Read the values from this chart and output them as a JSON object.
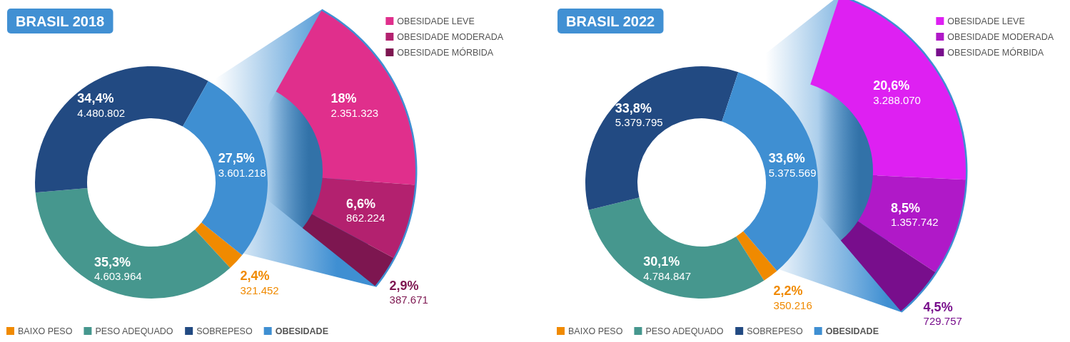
{
  "chart_data": [
    {
      "type": "donut",
      "title": "BRASIL 2018",
      "categories": [
        "BAIXO PESO",
        "PESO ADEQUADO",
        "SOBREPESO",
        "OBESIDADE"
      ],
      "values": [
        2.4,
        35.3,
        34.4,
        27.5
      ],
      "colors": [
        "#f08a00",
        "#46978e",
        "#224a82",
        "#3f8fd2"
      ],
      "value_labels": [
        "2,4%\n321.452",
        "35,3%\n4.603.964",
        "34,4%\n4.480.802",
        "27,5%\n3.601.218"
      ],
      "legend": "bottom"
    },
    {
      "type": "donut",
      "categories": [
        "OBESIDADE LEVE",
        "OBESIDADE MODERADA",
        "OBESIDADE MÓRBIDA"
      ],
      "values": [
        18,
        6.6,
        2.9
      ],
      "colors": [
        "#e02f8c",
        "#b3216f",
        "#7d1650"
      ],
      "value_labels": [
        "18%\n2.351.323",
        "6,6%\n862.224",
        "2,9%\n387.671"
      ],
      "legend": "top right"
    },
    {
      "type": "donut",
      "title": "BRASIL 2022",
      "categories": [
        "BAIXO PESO",
        "PESO ADEQUADO",
        "SOBREPESO",
        "OBESIDADE"
      ],
      "values": [
        2.2,
        30.1,
        33.8,
        33.6
      ],
      "colors": [
        "#f08a00",
        "#46978e",
        "#224a82",
        "#3f8fd2"
      ],
      "value_labels": [
        "2,2%\n350.216",
        "30,1%\n4.784.847",
        "33,8%\n5.379.795",
        "33,6%\n5.375.569"
      ],
      "legend": "bottom"
    },
    {
      "type": "donut",
      "categories": [
        "OBESIDADE LEVE",
        "OBESIDADE MODERADA",
        "OBESIDADE MÓRBIDA"
      ],
      "values": [
        20.6,
        8.5,
        4.5
      ],
      "colors": [
        "#de20f2",
        "#b019c8",
        "#780e8c"
      ],
      "value_labels": [
        "20,6%\n3.288.070",
        "8,5%\n1.357.742",
        "4,5%\n729.757"
      ],
      "legend": "top right"
    }
  ]
}
